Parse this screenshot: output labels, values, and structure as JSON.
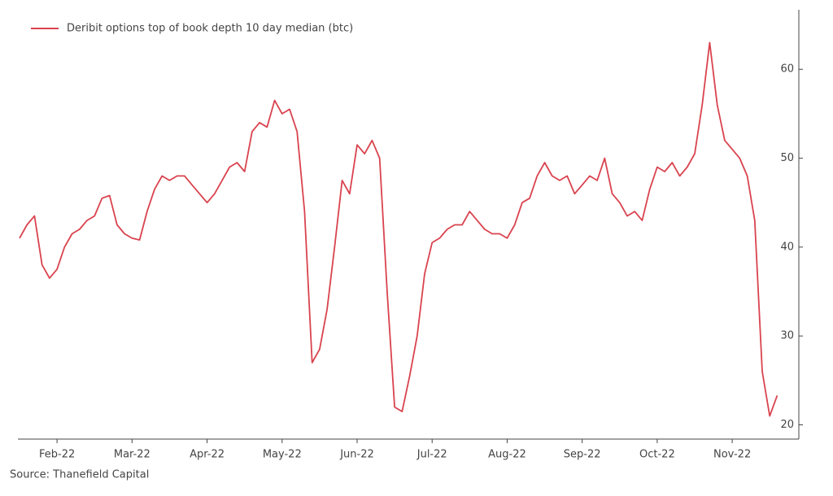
{
  "chart_data": {
    "type": "line",
    "categories": [
      null,
      null,
      null,
      null,
      null,
      "Feb-22",
      null,
      null,
      null,
      null,
      null,
      null,
      null,
      null,
      null,
      "Mar-22",
      null,
      null,
      null,
      null,
      null,
      null,
      null,
      null,
      null,
      "Apr-22",
      null,
      null,
      null,
      null,
      null,
      null,
      null,
      null,
      null,
      "May-22",
      null,
      null,
      null,
      null,
      null,
      null,
      null,
      null,
      null,
      "Jun-22",
      null,
      null,
      null,
      null,
      null,
      null,
      null,
      null,
      null,
      "Jul-22",
      null,
      null,
      null,
      null,
      null,
      null,
      null,
      null,
      null,
      "Aug-22",
      null,
      null,
      null,
      null,
      null,
      null,
      null,
      null,
      null,
      "Sep-22",
      null,
      null,
      null,
      null,
      null,
      null,
      null,
      null,
      null,
      "Oct-22",
      null,
      null,
      null,
      null,
      null,
      null,
      null,
      null,
      null,
      "Nov-22",
      null,
      null,
      null,
      null,
      null,
      null
    ],
    "series": [
      {
        "name": "Deribit options top of book depth 10 day median (btc)",
        "color": "#d9434e",
        "values": [
          41,
          42.5,
          43.5,
          38,
          36.5,
          37.5,
          40,
          41.5,
          42,
          43,
          43.5,
          45.5,
          45.8,
          42.5,
          41.5,
          41,
          40.8,
          44,
          46.5,
          48,
          47.5,
          48,
          48,
          47,
          46,
          45,
          46,
          47.5,
          49,
          49.5,
          48.5,
          53,
          54,
          53.5,
          56.5,
          55,
          55.5,
          53,
          44,
          27,
          28.5,
          33,
          40,
          47.5,
          46,
          51.5,
          50.5,
          52,
          50,
          35,
          22,
          21.5,
          25.5,
          30,
          37,
          40.5,
          41,
          42,
          42.5,
          42.5,
          44,
          43,
          42,
          41.5,
          41.5,
          41,
          42.5,
          45,
          45.5,
          48,
          49.5,
          48,
          47.5,
          48,
          46,
          47,
          48,
          47.5,
          50,
          46,
          45,
          43.5,
          44,
          43,
          46.5,
          49,
          48.5,
          49.5,
          48,
          49,
          50.5,
          56,
          63,
          56,
          52,
          51,
          50,
          48,
          43,
          26,
          21,
          23.3
        ]
      }
    ],
    "ylim": [
      18.4,
      66.7
    ],
    "yticks": [
      20,
      30,
      40,
      50,
      60
    ],
    "legend": "top-left",
    "source": "Source: Thanefield Capital"
  }
}
